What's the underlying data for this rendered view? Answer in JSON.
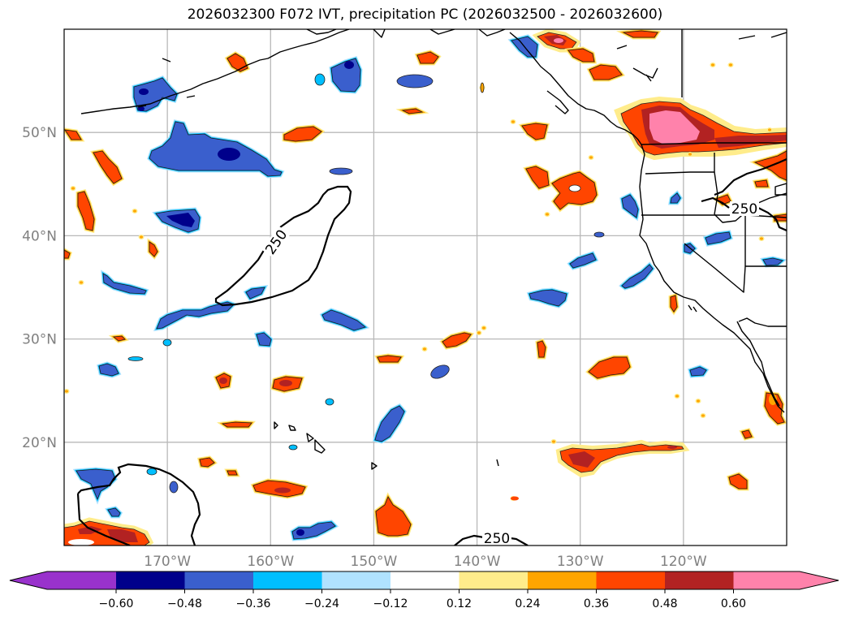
{
  "title": "2026032300 F072 IVT, precipitation PC (2026032500 - 2026032600)",
  "chart_data": {
    "type": "map-filled-contour",
    "title": "2026032300 F072 IVT, precipitation PC (2026032500 - 2026032600)",
    "projection": "PlateCarree",
    "extent": {
      "lon": [
        -180,
        -110
      ],
      "lat": [
        10,
        60
      ]
    },
    "grid": true,
    "lon_ticks": [
      {
        "value": -170,
        "label": "170°W"
      },
      {
        "value": -160,
        "label": "160°W"
      },
      {
        "value": -150,
        "label": "150°W"
      },
      {
        "value": -140,
        "label": "140°W"
      },
      {
        "value": -130,
        "label": "130°W"
      },
      {
        "value": -120,
        "label": "120°W"
      }
    ],
    "lat_ticks": [
      {
        "value": 50,
        "label": "50°N"
      },
      {
        "value": 40,
        "label": "40°N"
      },
      {
        "value": 30,
        "label": "30°N"
      },
      {
        "value": 20,
        "label": "20°N"
      }
    ],
    "ivt_contour": {
      "level": 250,
      "label": "250",
      "color": "#000000"
    },
    "colorbar": {
      "orientation": "horizontal",
      "extend": "both",
      "levels": [
        -0.6,
        -0.48,
        -0.36,
        -0.24,
        -0.12,
        0.12,
        0.24,
        0.36,
        0.48,
        0.6
      ],
      "tick_labels": [
        "−0.60",
        "−0.48",
        "−0.36",
        "−0.24",
        "−0.12",
        "0.12",
        "0.24",
        "0.36",
        "0.48",
        "0.60"
      ],
      "colors": [
        "#9932cc",
        "#00008b",
        "#3a5fcd",
        "#00bfff",
        "#b0e2ff",
        "#ffffff",
        "#ffec8b",
        "#ffa500",
        "#ff4500",
        "#b22222",
        "#ff82ab"
      ]
    },
    "features": [
      {
        "name": "bc-pink-max",
        "lon": -123.5,
        "lat": 50.5,
        "class": 10
      },
      {
        "name": "hawaii-region-blue",
        "lon": -150.5,
        "lat": 22,
        "class": 2
      }
    ]
  }
}
